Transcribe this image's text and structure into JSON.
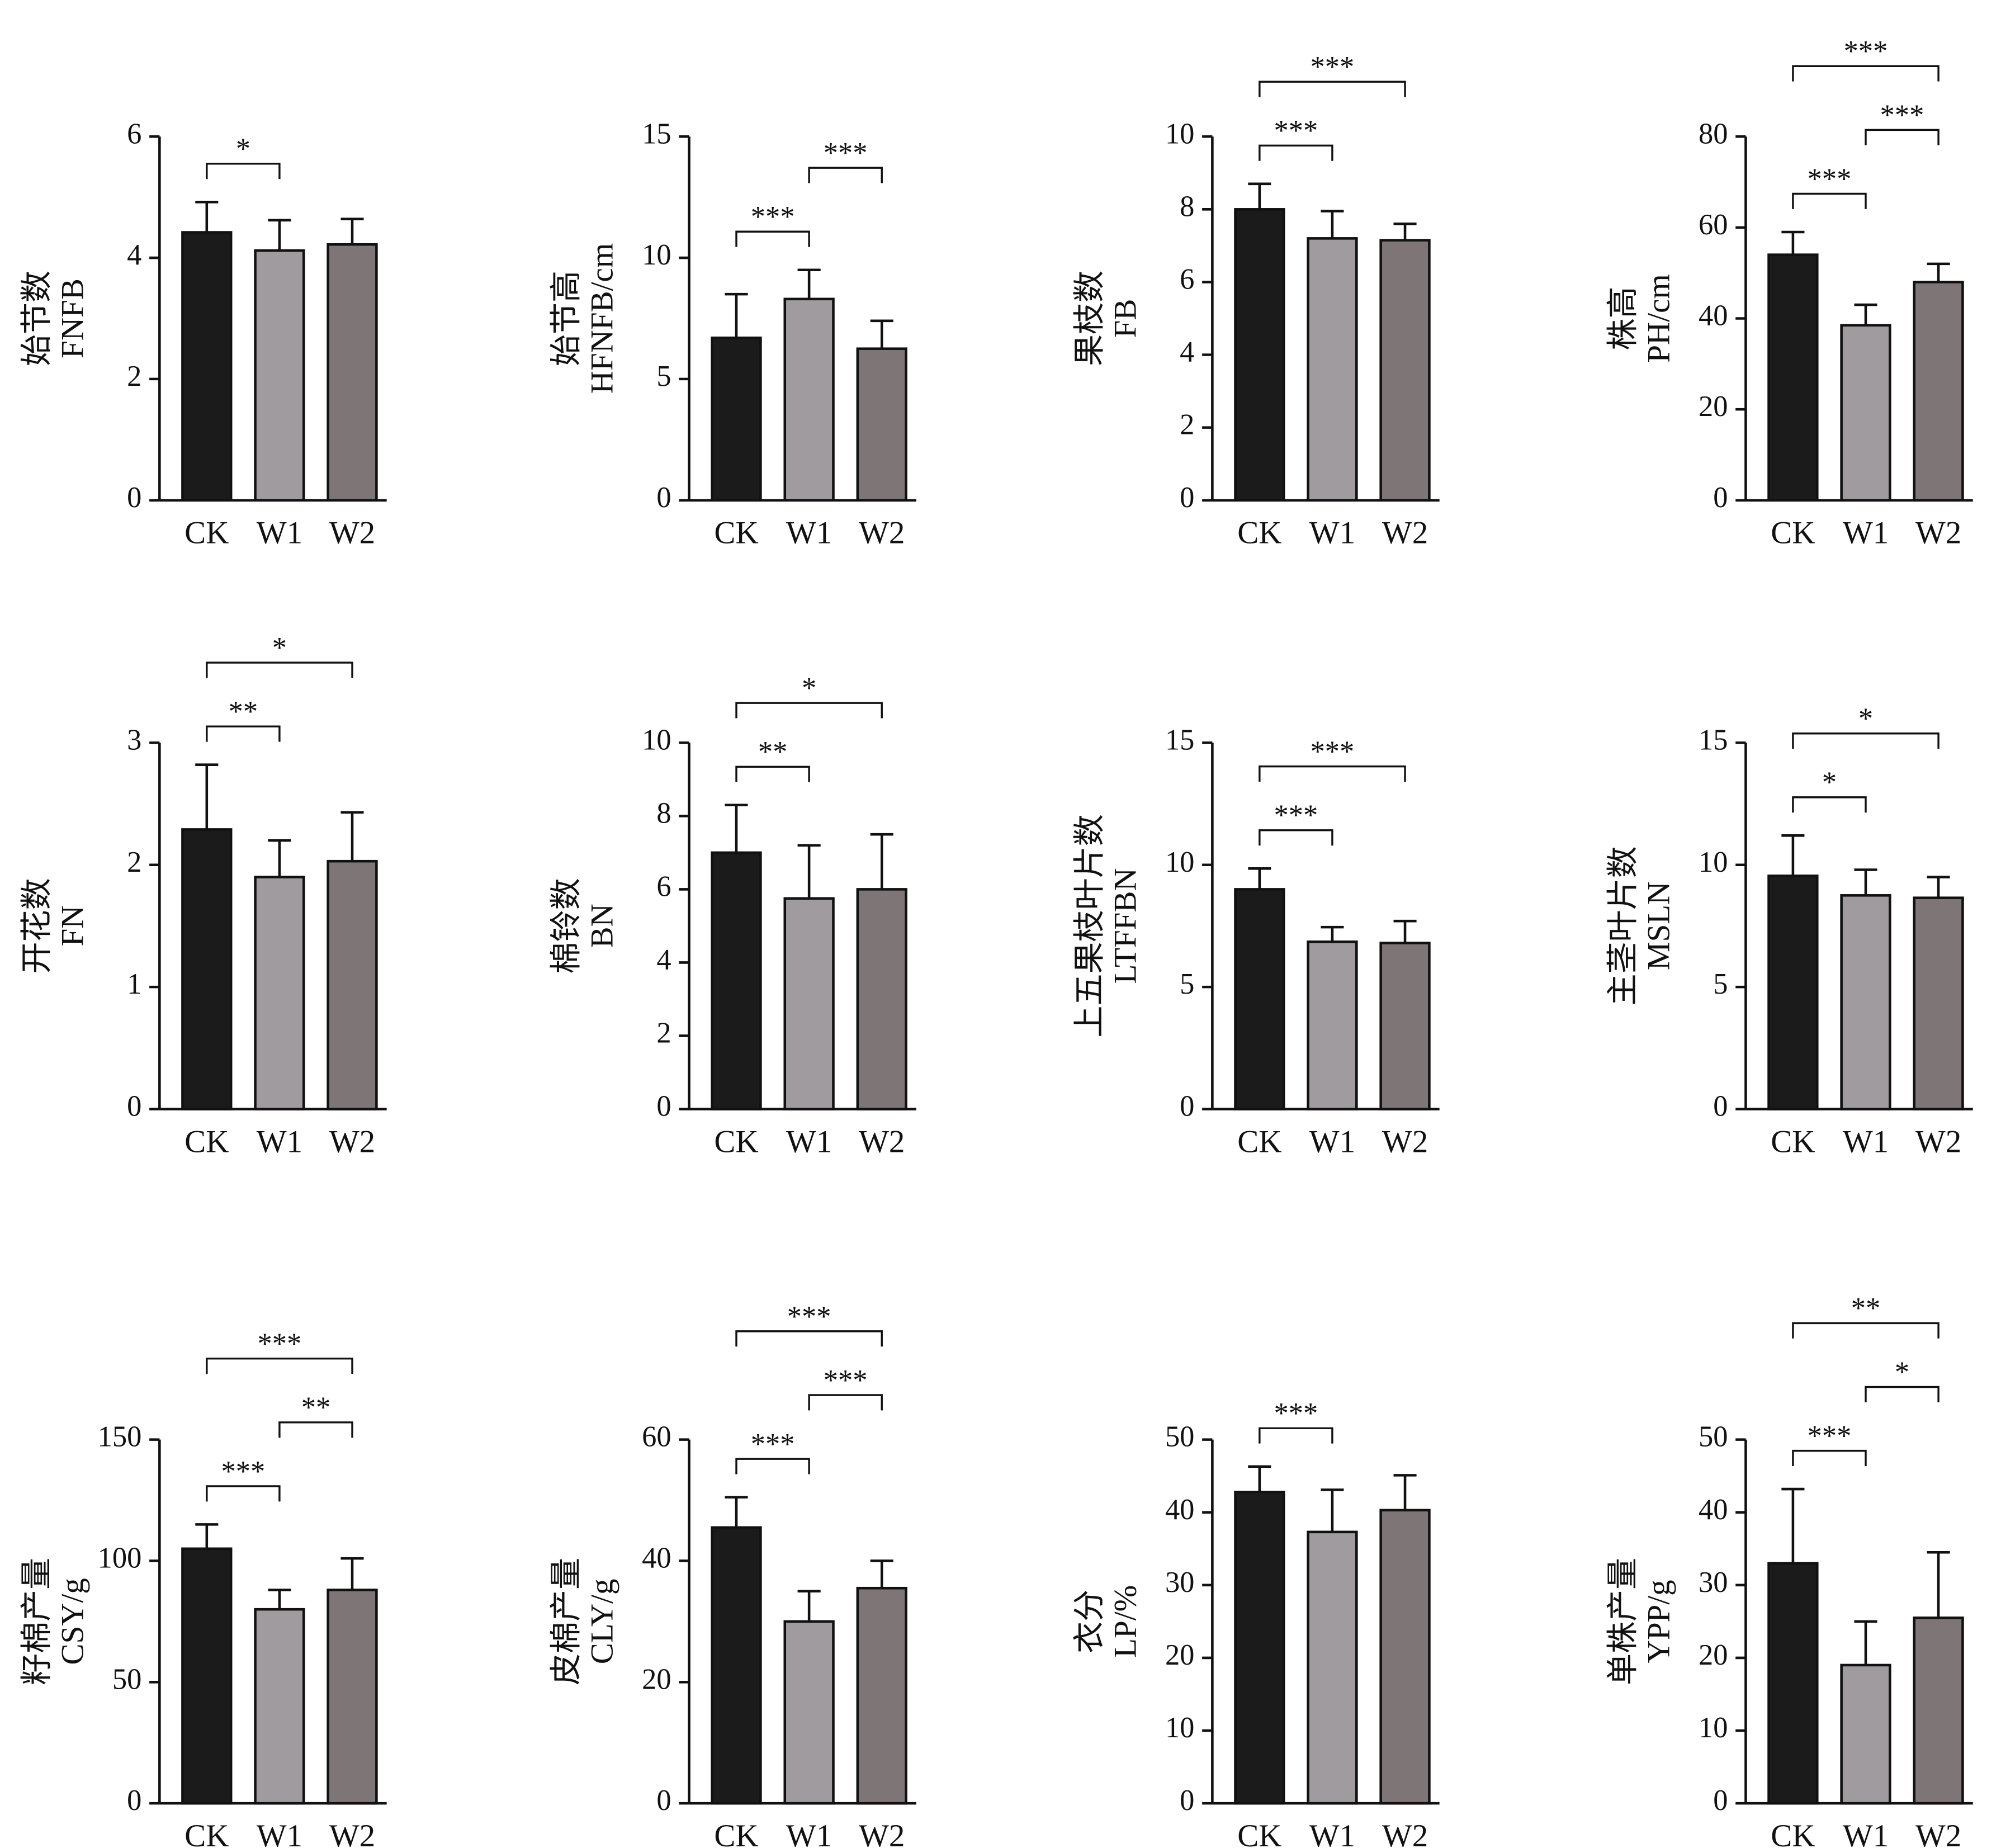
{
  "chart_data": [
    {
      "type": "bar",
      "ylabel": [
        "始节数",
        "FNFB"
      ],
      "categories": [
        "CK",
        "W1",
        "W2"
      ],
      "values": [
        4.42,
        4.12,
        4.22
      ],
      "errors": [
        0.5,
        0.5,
        0.42
      ],
      "colors": [
        "#1b1b1b",
        "#a09b9e",
        "#7e7577"
      ],
      "ylim": [
        0,
        6
      ],
      "yticks": [
        0,
        2,
        4,
        6
      ],
      "brackets": [
        {
          "between": [
            "CK",
            "W1"
          ],
          "label": "*"
        }
      ]
    },
    {
      "type": "bar",
      "ylabel": [
        "始节高",
        "HFNFB/cm"
      ],
      "categories": [
        "CK",
        "W1",
        "W2"
      ],
      "values": [
        6.7,
        8.3,
        6.25
      ],
      "errors": [
        1.8,
        1.2,
        1.15
      ],
      "colors": [
        "#1b1b1b",
        "#a09b9e",
        "#7e7577"
      ],
      "ylim": [
        0,
        15
      ],
      "yticks": [
        0,
        5,
        10,
        15
      ],
      "brackets": [
        {
          "between": [
            "CK",
            "W1"
          ],
          "label": "***"
        },
        {
          "between": [
            "W1",
            "W2"
          ],
          "label": "***"
        }
      ]
    },
    {
      "type": "bar",
      "ylabel": [
        "果枝数",
        "FB"
      ],
      "categories": [
        "CK",
        "W1",
        "W2"
      ],
      "values": [
        8.0,
        7.2,
        7.15
      ],
      "errors": [
        0.7,
        0.75,
        0.45
      ],
      "colors": [
        "#1b1b1b",
        "#a09b9e",
        "#7e7577"
      ],
      "ylim": [
        0,
        10
      ],
      "yticks": [
        0,
        2,
        4,
        6,
        8,
        10
      ],
      "brackets": [
        {
          "between": [
            "CK",
            "W1"
          ],
          "label": "***"
        },
        {
          "between": [
            "CK",
            "W2"
          ],
          "label": "***"
        }
      ]
    },
    {
      "type": "bar",
      "ylabel": [
        "株高",
        "PH/cm"
      ],
      "categories": [
        "CK",
        "W1",
        "W2"
      ],
      "values": [
        54,
        38.5,
        48
      ],
      "errors": [
        5,
        4.5,
        4
      ],
      "colors": [
        "#1b1b1b",
        "#a09b9e",
        "#7e7577"
      ],
      "ylim": [
        0,
        80
      ],
      "yticks": [
        0,
        20,
        40,
        60,
        80
      ],
      "brackets": [
        {
          "between": [
            "CK",
            "W1"
          ],
          "label": "***"
        },
        {
          "between": [
            "W1",
            "W2"
          ],
          "label": "***"
        },
        {
          "between": [
            "CK",
            "W2"
          ],
          "label": "***"
        }
      ]
    },
    {
      "type": "bar",
      "ylabel": [
        "开花数",
        "FN"
      ],
      "categories": [
        "CK",
        "W1",
        "W2"
      ],
      "values": [
        2.29,
        1.9,
        2.03
      ],
      "errors": [
        0.53,
        0.3,
        0.4
      ],
      "colors": [
        "#1b1b1b",
        "#a09b9e",
        "#7e7577"
      ],
      "ylim": [
        0,
        3
      ],
      "yticks": [
        0,
        1,
        2,
        3
      ],
      "brackets": [
        {
          "between": [
            "CK",
            "W1"
          ],
          "label": "**"
        },
        {
          "between": [
            "CK",
            "W2"
          ],
          "label": "*"
        }
      ]
    },
    {
      "type": "bar",
      "ylabel": [
        "棉铃数",
        "BN"
      ],
      "categories": [
        "CK",
        "W1",
        "W2"
      ],
      "values": [
        7.0,
        5.75,
        6.0
      ],
      "errors": [
        1.3,
        1.45,
        1.5
      ],
      "colors": [
        "#1b1b1b",
        "#a09b9e",
        "#7e7577"
      ],
      "ylim": [
        0,
        10
      ],
      "yticks": [
        0,
        2,
        4,
        6,
        8,
        10
      ],
      "brackets": [
        {
          "between": [
            "CK",
            "W1"
          ],
          "label": "**"
        },
        {
          "between": [
            "CK",
            "W2"
          ],
          "label": "*"
        }
      ]
    },
    {
      "type": "bar",
      "ylabel": [
        "上五果枝叶片数",
        "LTFFBN"
      ],
      "categories": [
        "CK",
        "W1",
        "W2"
      ],
      "values": [
        9.0,
        6.85,
        6.8
      ],
      "errors": [
        0.85,
        0.6,
        0.9
      ],
      "colors": [
        "#1b1b1b",
        "#a09b9e",
        "#7e7577"
      ],
      "ylim": [
        0,
        15
      ],
      "yticks": [
        0,
        5,
        10,
        15
      ],
      "brackets": [
        {
          "between": [
            "CK",
            "W1"
          ],
          "label": "***"
        },
        {
          "between": [
            "CK",
            "W2"
          ],
          "label": "***"
        }
      ]
    },
    {
      "type": "bar",
      "ylabel": [
        "主茎叶片数",
        "MSLN"
      ],
      "categories": [
        "CK",
        "W1",
        "W2"
      ],
      "values": [
        9.55,
        8.75,
        8.65
      ],
      "errors": [
        1.65,
        1.05,
        0.85
      ],
      "colors": [
        "#1b1b1b",
        "#a09b9e",
        "#7e7577"
      ],
      "ylim": [
        0,
        15
      ],
      "yticks": [
        0,
        5,
        10,
        15
      ],
      "brackets": [
        {
          "between": [
            "CK",
            "W1"
          ],
          "label": "*"
        },
        {
          "between": [
            "CK",
            "W2"
          ],
          "label": "*"
        }
      ]
    },
    {
      "type": "bar",
      "ylabel": [
        "籽棉产量",
        "CSY/g"
      ],
      "categories": [
        "CK",
        "W1",
        "W2"
      ],
      "values": [
        105,
        80,
        88
      ],
      "errors": [
        10,
        8,
        13
      ],
      "colors": [
        "#1b1b1b",
        "#a09b9e",
        "#7e7577"
      ],
      "ylim": [
        0,
        150
      ],
      "yticks": [
        0,
        50,
        100,
        150
      ],
      "brackets": [
        {
          "between": [
            "CK",
            "W1"
          ],
          "label": "***"
        },
        {
          "between": [
            "W1",
            "W2"
          ],
          "label": "**"
        },
        {
          "between": [
            "CK",
            "W2"
          ],
          "label": "***"
        }
      ]
    },
    {
      "type": "bar",
      "ylabel": [
        "皮棉产量",
        "CLY/g"
      ],
      "categories": [
        "CK",
        "W1",
        "W2"
      ],
      "values": [
        45.5,
        30,
        35.5
      ],
      "errors": [
        5,
        5,
        4.5
      ],
      "colors": [
        "#1b1b1b",
        "#a09b9e",
        "#7e7577"
      ],
      "ylim": [
        0,
        60
      ],
      "yticks": [
        0,
        20,
        40,
        60
      ],
      "brackets": [
        {
          "between": [
            "CK",
            "W1"
          ],
          "label": "***"
        },
        {
          "between": [
            "W1",
            "W2"
          ],
          "label": "***"
        },
        {
          "between": [
            "CK",
            "W2"
          ],
          "label": "***"
        }
      ]
    },
    {
      "type": "bar",
      "ylabel": [
        "衣分",
        "LP/%"
      ],
      "categories": [
        "CK",
        "W1",
        "W2"
      ],
      "values": [
        42.8,
        37.3,
        40.3
      ],
      "errors": [
        3.5,
        5.8,
        4.8
      ],
      "colors": [
        "#1b1b1b",
        "#a09b9e",
        "#7e7577"
      ],
      "ylim": [
        0,
        50
      ],
      "yticks": [
        0,
        10,
        20,
        30,
        40,
        50
      ],
      "brackets": [
        {
          "between": [
            "CK",
            "W1"
          ],
          "label": "***"
        }
      ]
    },
    {
      "type": "bar",
      "ylabel": [
        "单株产量",
        "YPP/g"
      ],
      "categories": [
        "CK",
        "W1",
        "W2"
      ],
      "values": [
        33,
        19,
        25.5
      ],
      "errors": [
        10.2,
        6,
        9
      ],
      "colors": [
        "#1b1b1b",
        "#a09b9e",
        "#7e7577"
      ],
      "ylim": [
        0,
        50
      ],
      "yticks": [
        0,
        10,
        20,
        30,
        40,
        50
      ],
      "brackets": [
        {
          "between": [
            "CK",
            "W1"
          ],
          "label": "***"
        },
        {
          "between": [
            "W1",
            "W2"
          ],
          "label": "*"
        },
        {
          "between": [
            "CK",
            "W2"
          ],
          "label": "**"
        }
      ]
    }
  ]
}
